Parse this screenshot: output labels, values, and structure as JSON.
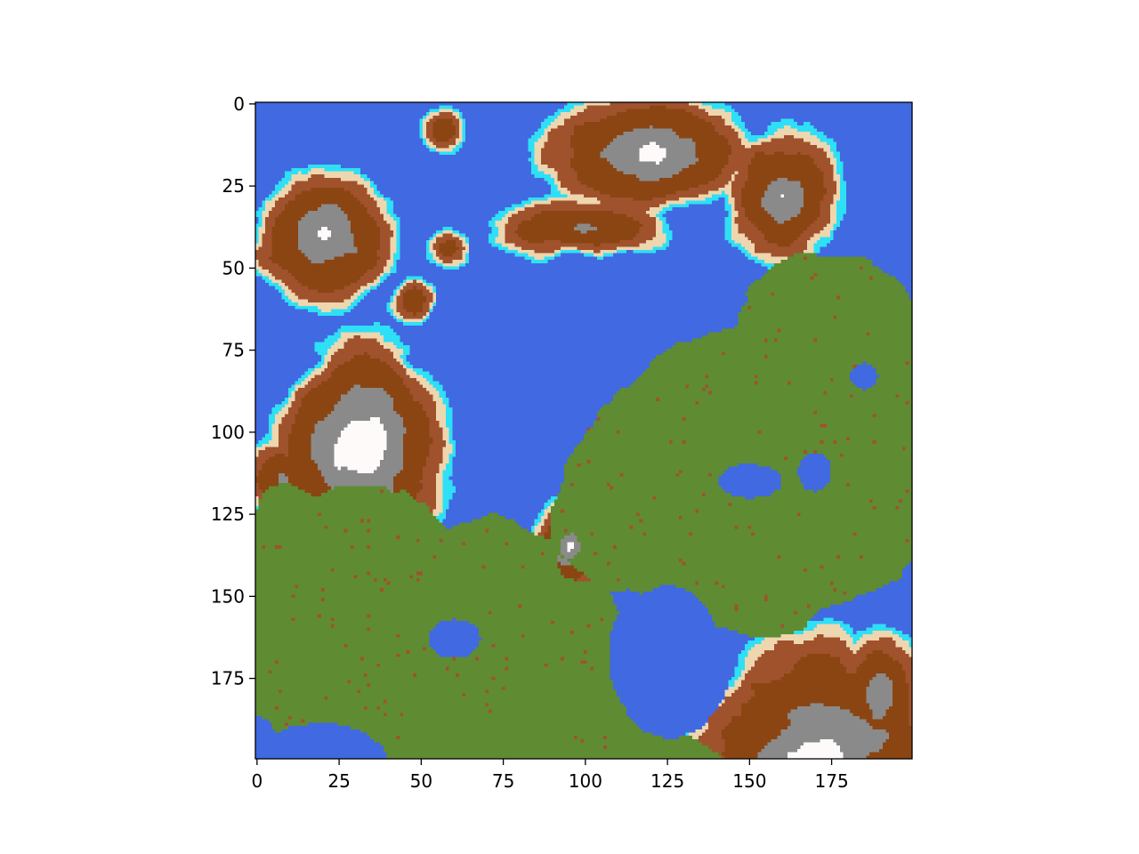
{
  "chart_data": {
    "type": "heatmap",
    "title": "",
    "xlabel": "",
    "ylabel": "",
    "grid": false,
    "legend": "none",
    "width_cells": 200,
    "height_cells": 200,
    "xlim": [
      -0.5,
      199.5
    ],
    "ylim": [
      199.5,
      -0.5
    ],
    "x_ticks": [
      0,
      25,
      50,
      75,
      100,
      125,
      150,
      175
    ],
    "y_ticks": [
      0,
      25,
      50,
      75,
      100,
      125,
      150,
      175
    ],
    "x_tick_labels": [
      "0",
      "25",
      "50",
      "75",
      "100",
      "125",
      "150",
      "175"
    ],
    "y_tick_labels": [
      "0",
      "25",
      "50",
      "75",
      "100",
      "125",
      "150",
      "175"
    ],
    "colors": {
      "deep_water": "#4169E1",
      "shallow_water": "#2EE0F5",
      "sand": "#EED6AF",
      "grass": "#5F8B32",
      "dirt_light": "#A0522D",
      "dirt": "#8B4513",
      "rock": "#8A8A8A",
      "snow": "#FFFAFA"
    }
  }
}
